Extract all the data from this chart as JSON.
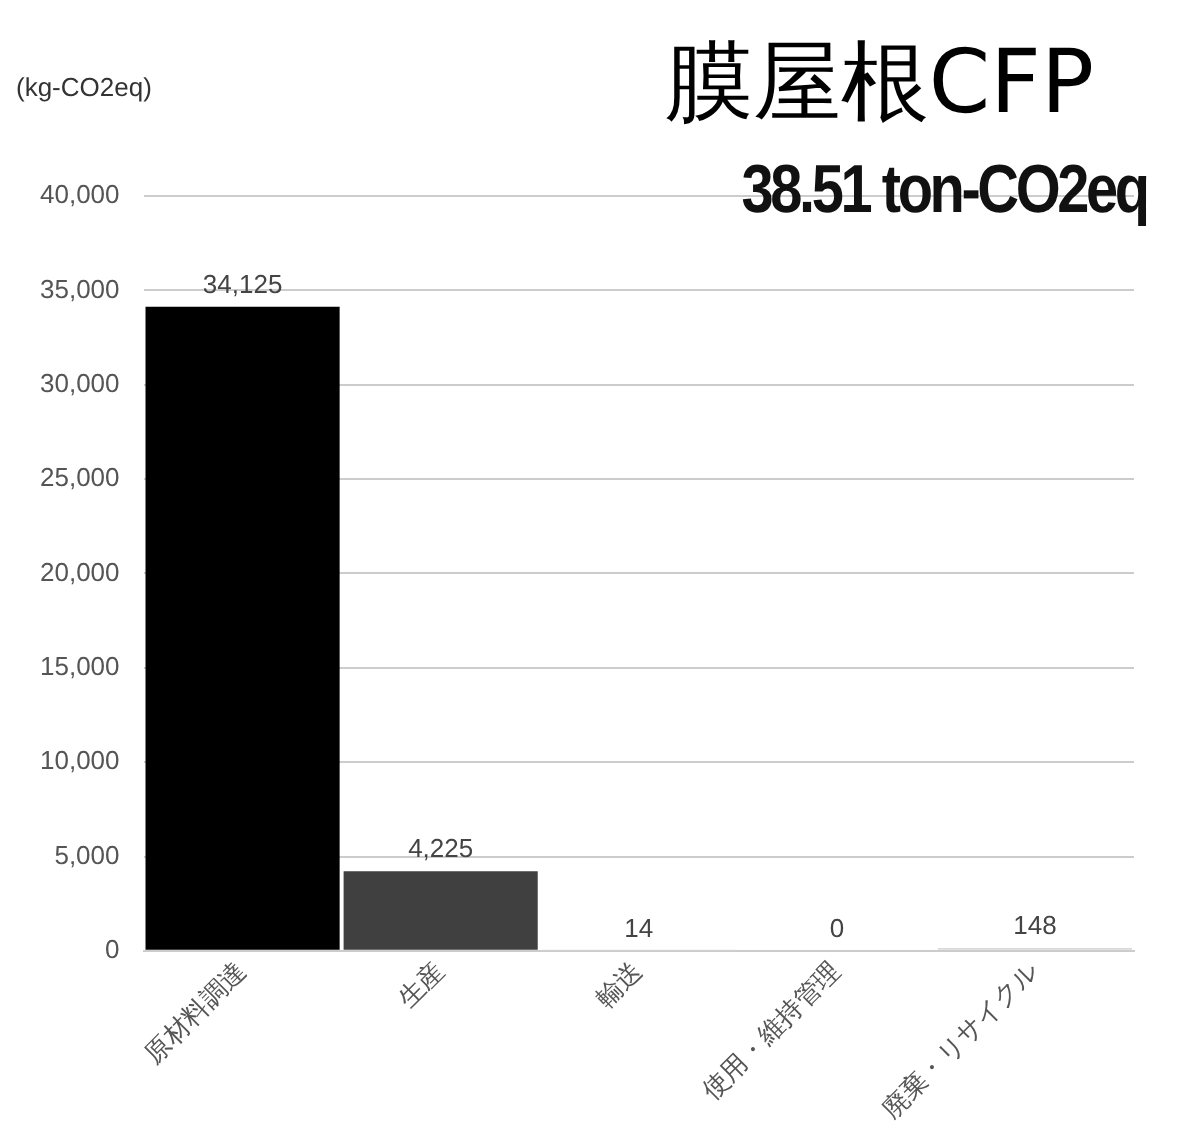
{
  "chart_data": {
    "type": "bar",
    "title": "膜屋根CFP",
    "subtitle": "38.51 ton-CO2eq",
    "ylabel": "(kg-CO2eq)",
    "categories": [
      "原材料調達",
      "生産",
      "輸送",
      "使用・維持管理",
      "廃棄・リサイクル"
    ],
    "values": [
      34125,
      4225,
      14,
      0,
      148
    ],
    "colors": [
      "#000000",
      "#404040",
      "#d9d9d9",
      "#d9d9d9",
      "#d9d9d9"
    ],
    "value_labels": [
      "34,125",
      "4,225",
      "14",
      "0",
      "148"
    ],
    "ylim": [
      0,
      40000
    ],
    "yticks": [
      0,
      {
        "value": 5000,
        "label": "5,000"
      },
      {
        "value": 10000,
        "label": "10,000"
      },
      {
        "value": 15000,
        "label": "15,000"
      },
      {
        "value": 20000,
        "label": "20,000"
      },
      {
        "value": 25000,
        "label": "25,000"
      },
      {
        "value": 30000,
        "label": "30,000"
      },
      {
        "value": 35000,
        "label": "35,000"
      },
      {
        "value": 40000,
        "label": "40,000"
      }
    ],
    "grid": "y",
    "legend": false
  }
}
